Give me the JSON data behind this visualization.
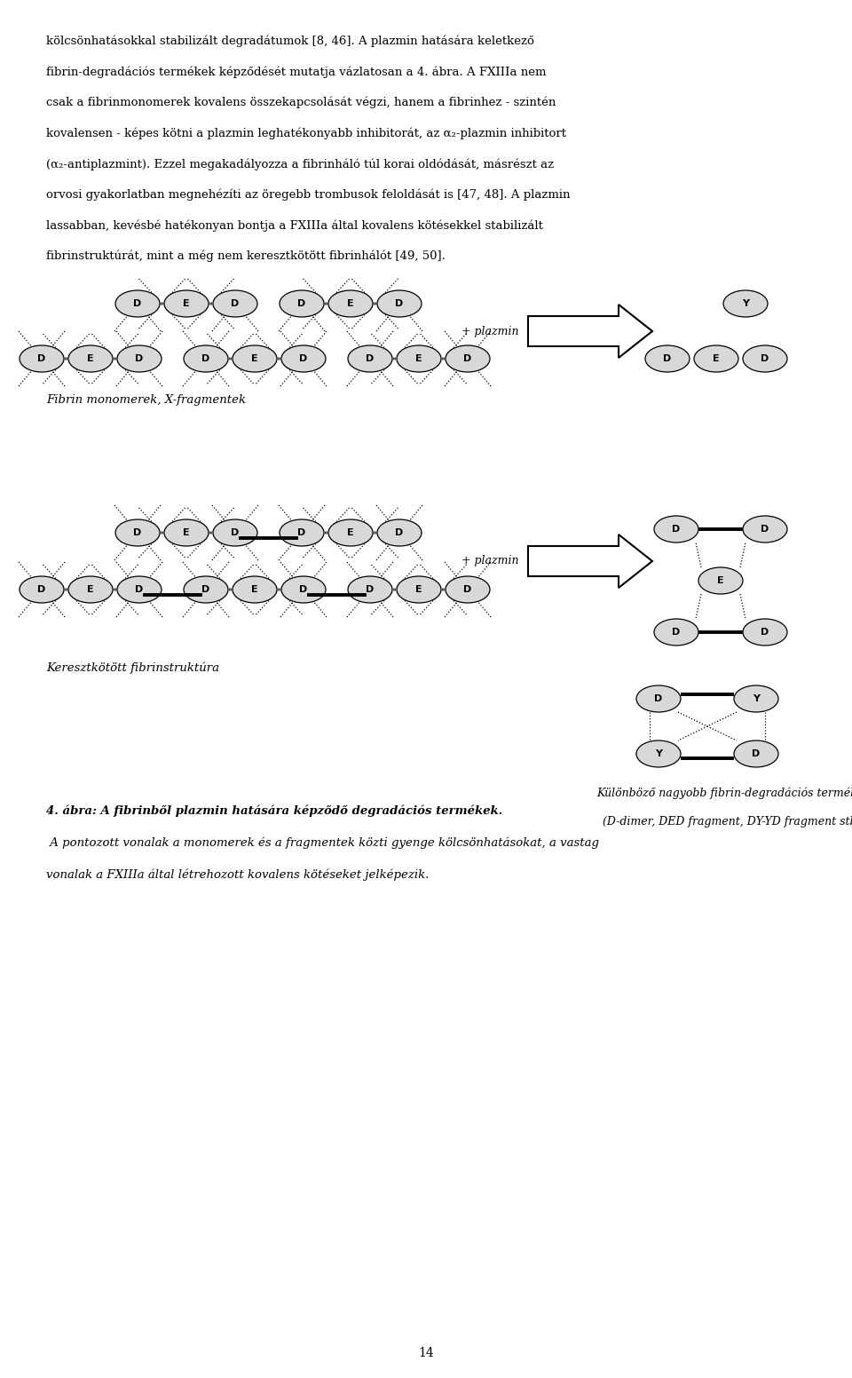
{
  "background_color": "#ffffff",
  "page_width": 9.6,
  "page_height": 15.52,
  "text_color": "#000000",
  "lines": [
    "kölcsönhatásokkal stabilizált degradátumok [8, 46]. A plazmin hatására keletkező",
    "fibrin-degradációs termékek képződését mutatja vázlatosan a 4. ábra. A FXIIIa nem",
    "csak a fibrinmonomerek kovalens összekapcsolását végzi, hanem a fibrinhez - szintén",
    "kovalensen - képes kötni a plazmin leghatékonyabb inhibitorát, az α₂-plazmin inhibitort",
    "(α₂-antiplazmint). Ezzel megakadályozza a fibrinháló túl korai oldódását, másrészt az",
    "orvosi gyakorlatban megnehézíti az öregebb trombusok feloldását is [47, 48]. A plazmin",
    "lassabban, kevésbé hatékonyan bontja a FXIIIa által kovalens kötésekkel stabilizált",
    "fibrinstruktúrát, mint a még nem keresztkötött fibrinhálót [49, 50]."
  ],
  "label_fibrin": "Fibrin monomerek, X-fragmentek",
  "label_cross": "Keresztkötött fibrinstruktúra",
  "label_products_line1": "Különböző nagyobb fibrin-degradációs termékek",
  "label_products_line2": "(D-dimer, DED fragment, DY-YD fragment stb.)",
  "caption_bold": "4. ábra: A fibrinből plazmin hatására képződő degradációs termékek.",
  "caption_italic_lines": [
    " A pontozott vonalak a monomerek és a fragmentek közti gyenge kölcsönhatásokat, a vastag",
    "vonalak a FXIIIa által létrehozott kovalens kötéseket jelképezik."
  ],
  "page_number": "14",
  "ellipse_color": "#d8d8d8",
  "ellipse_edge": "#000000",
  "plus_plazmin": "+ plazmin"
}
